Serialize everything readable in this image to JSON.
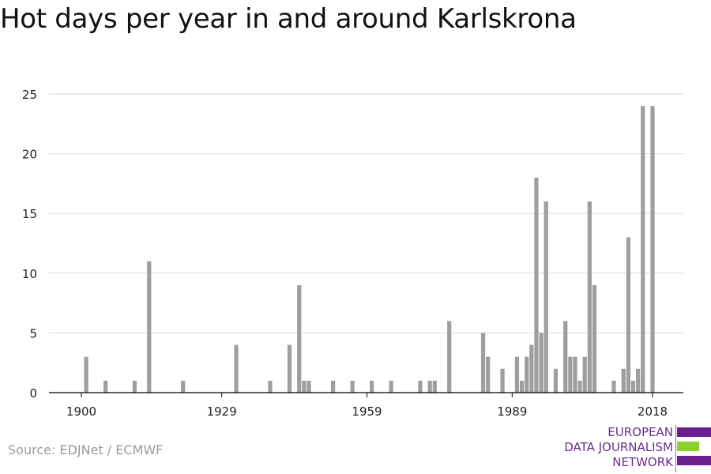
{
  "title": "Hot days per year in and around Karlskrona",
  "source": "Source: EDJNet / ECMWF",
  "logo": {
    "line1": "EUROPEAN",
    "line2": "DATA JOURNALISM",
    "line3": "NETWORK",
    "colors": {
      "purple": "#6b1f8f",
      "green": "#8fd12b"
    }
  },
  "colors": {
    "bar": "#9e9e9e",
    "grid": "#d9d9d9",
    "axis": "#000000"
  },
  "chart_data": {
    "type": "bar",
    "title": "Hot days per year in and around Karlskrona",
    "xlabel": "",
    "ylabel": "",
    "ylim": [
      0,
      25
    ],
    "yticks": [
      0,
      5,
      10,
      15,
      20,
      25
    ],
    "xticks": [
      1900,
      1929,
      1959,
      1989,
      2018
    ],
    "xlim": [
      1894,
      2024
    ],
    "grid": true,
    "x": [
      1901,
      1905,
      1911,
      1914,
      1921,
      1932,
      1939,
      1943,
      1945,
      1946,
      1947,
      1952,
      1956,
      1960,
      1964,
      1970,
      1972,
      1973,
      1976,
      1983,
      1984,
      1987,
      1990,
      1991,
      1992,
      1993,
      1994,
      1995,
      1996,
      1998,
      2000,
      2001,
      2002,
      2003,
      2004,
      2005,
      2006,
      2010,
      2012,
      2013,
      2014,
      2015,
      2016,
      2018
    ],
    "values": [
      3,
      1,
      1,
      11,
      1,
      4,
      1,
      4,
      9,
      1,
      1,
      1,
      1,
      1,
      1,
      1,
      1,
      1,
      6,
      5,
      3,
      2,
      3,
      1,
      3,
      4,
      18,
      5,
      16,
      2,
      6,
      3,
      3,
      1,
      3,
      16,
      9,
      1,
      2,
      13,
      1,
      2,
      24,
      24
    ]
  }
}
